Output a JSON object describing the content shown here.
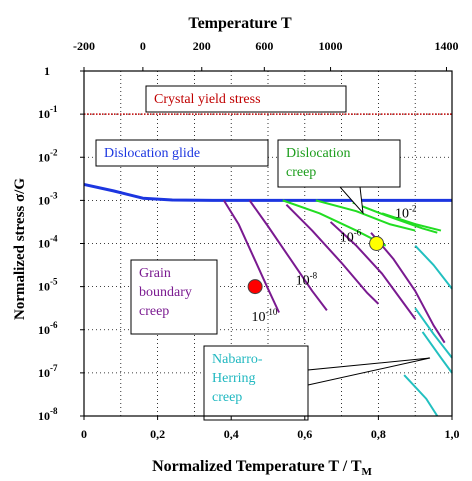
{
  "chart_data": {
    "type": "line",
    "top_axis": {
      "title": "Temperature  T",
      "ticks": [
        "-200",
        "0",
        "200",
        "600",
        "1000",
        "1400"
      ],
      "tick_positions_x": [
        0.0,
        0.16,
        0.32,
        0.49,
        0.67,
        0.985
      ]
    },
    "bottom_axis": {
      "title": "Normalized Temperature  T / T",
      "title_subscript": "M",
      "ticks": [
        "0",
        "0,2",
        "0,4",
        "0,6",
        "0,8",
        "1,0"
      ],
      "xlim": [
        0,
        1
      ]
    },
    "left_axis": {
      "title": "Normalized stress σ/G",
      "scale": "log",
      "ylim_exp": [
        -8,
        0
      ],
      "tick_labels": [
        {
          "base": "1",
          "exp": ""
        },
        {
          "base": "10",
          "exp": "-1"
        },
        {
          "base": "10",
          "exp": "-2"
        },
        {
          "base": "10",
          "exp": "-3"
        },
        {
          "base": "10",
          "exp": "-4"
        },
        {
          "base": "10",
          "exp": "-5"
        },
        {
          "base": "10",
          "exp": "-6"
        },
        {
          "base": "10",
          "exp": "-7"
        },
        {
          "base": "10",
          "exp": "-8"
        }
      ]
    },
    "grid": true,
    "series": [
      {
        "name": "Crystal yield stress",
        "color": "#c00000",
        "style": "dotted",
        "points": [
          [
            0,
            -1
          ],
          [
            1,
            -1
          ]
        ]
      },
      {
        "name": "Dislocation glide",
        "color": "#1c36e0",
        "points": [
          [
            0,
            -2.63
          ],
          [
            0.08,
            -2.78
          ],
          [
            0.16,
            -2.95
          ],
          [
            0.24,
            -2.99
          ],
          [
            0.35,
            -3.0
          ],
          [
            1.0,
            -3.0
          ]
        ]
      },
      {
        "group": "grain",
        "color": "#7a1a90",
        "points": [
          [
            0.38,
            -3.0
          ],
          [
            0.42,
            -3.55
          ],
          [
            0.46,
            -4.3
          ],
          [
            0.5,
            -5.05
          ],
          [
            0.53,
            -5.6
          ]
        ]
      },
      {
        "group": "grain",
        "color": "#7a1a90",
        "points": [
          [
            0.45,
            -3.0
          ],
          [
            0.5,
            -3.6
          ],
          [
            0.56,
            -4.35
          ],
          [
            0.62,
            -5.1
          ],
          [
            0.66,
            -5.55
          ]
        ]
      },
      {
        "group": "grain",
        "color": "#7a1a90",
        "points": [
          [
            0.55,
            -3.1
          ],
          [
            0.62,
            -3.7
          ],
          [
            0.7,
            -4.45
          ],
          [
            0.77,
            -5.15
          ],
          [
            0.8,
            -5.4
          ]
        ]
      },
      {
        "group": "grain",
        "color": "#7a1a90",
        "points": [
          [
            0.67,
            -3.5
          ],
          [
            0.74,
            -4.05
          ],
          [
            0.81,
            -4.7
          ],
          [
            0.87,
            -5.4
          ],
          [
            0.9,
            -5.75
          ]
        ]
      },
      {
        "group": "grain",
        "color": "#7a1a90",
        "points": [
          [
            0.78,
            -3.75
          ],
          [
            0.84,
            -4.35
          ],
          [
            0.9,
            -5.1
          ],
          [
            0.95,
            -5.9
          ],
          [
            0.98,
            -6.3
          ]
        ]
      },
      {
        "group": "dislocation-creep",
        "color": "#22dd22",
        "points": [
          [
            0.54,
            -3.0
          ],
          [
            0.64,
            -3.3
          ],
          [
            0.74,
            -3.7
          ],
          [
            0.82,
            -4.05
          ]
        ]
      },
      {
        "group": "dislocation-creep",
        "color": "#22dd22",
        "points": [
          [
            0.63,
            -3.0
          ],
          [
            0.74,
            -3.25
          ],
          [
            0.83,
            -3.55
          ],
          [
            0.9,
            -3.7
          ]
        ]
      },
      {
        "group": "dislocation-creep",
        "color": "#22dd22",
        "points": [
          [
            0.73,
            -3.05
          ],
          [
            0.82,
            -3.35
          ],
          [
            0.92,
            -3.65
          ],
          [
            0.96,
            -3.75
          ]
        ]
      },
      {
        "group": "dislocation-creep",
        "color": "#22dd22",
        "points": [
          [
            0.81,
            -3.3
          ],
          [
            0.9,
            -3.55
          ],
          [
            0.97,
            -3.7
          ]
        ]
      },
      {
        "group": "nabarro-herring",
        "color": "#22c0c0",
        "points": [
          [
            0.9,
            -4.05
          ],
          [
            0.95,
            -4.5
          ],
          [
            1.0,
            -5.05
          ]
        ]
      },
      {
        "group": "nabarro-herring",
        "color": "#22c0c0",
        "points": [
          [
            0.9,
            -5.5
          ],
          [
            0.95,
            -6.1
          ],
          [
            1.0,
            -6.65
          ]
        ]
      },
      {
        "group": "nabarro-herring",
        "color": "#22c0c0",
        "points": [
          [
            0.87,
            -7.05
          ],
          [
            0.93,
            -7.6
          ],
          [
            0.96,
            -8.0
          ]
        ]
      },
      {
        "group": "nabarro-herring",
        "color": "#22c0c0",
        "points": [
          [
            0.92,
            -6.05
          ],
          [
            0.97,
            -6.65
          ],
          [
            1.0,
            -7.0
          ]
        ]
      }
    ],
    "markers": [
      {
        "x": 0.465,
        "y_exp": -5.0,
        "color": "#ff0000"
      },
      {
        "x": 0.795,
        "y_exp": -4.0,
        "color": "#ffff00"
      }
    ],
    "labels": [
      {
        "base": "10",
        "exp": "-2",
        "x": 0.845,
        "y_exp": -3.4
      },
      {
        "base": "10",
        "exp": "-6",
        "x": 0.695,
        "y_exp": -3.95
      },
      {
        "base": "10",
        "exp": "-8",
        "x": 0.575,
        "y_exp": -4.95
      },
      {
        "base": "10",
        "exp": "-10",
        "x": 0.455,
        "y_exp": -5.8
      }
    ],
    "annotations": [
      {
        "lines": [
          "Crystal yield stress"
        ],
        "color": "#c00000"
      },
      {
        "lines": [
          "Dislocation glide"
        ],
        "color": "#1c36e0"
      },
      {
        "lines": [
          "Dislocation",
          "creep"
        ],
        "color": "#1b9d1b"
      },
      {
        "lines": [
          "Grain",
          "boundary",
          "creep"
        ],
        "color": "#7a1a90"
      },
      {
        "lines": [
          "Nabarro-",
          "Herring",
          "creep"
        ],
        "color": "#20b8c0"
      }
    ]
  }
}
